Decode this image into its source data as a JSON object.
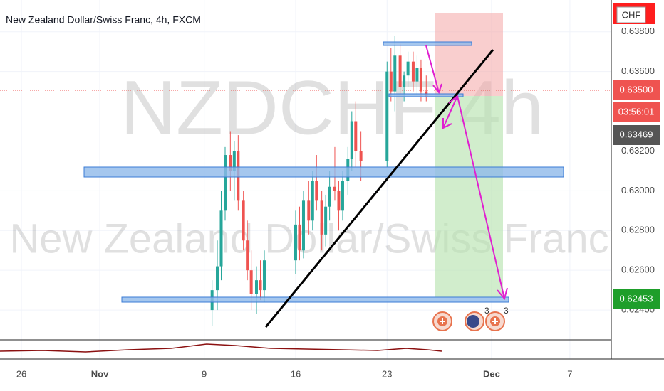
{
  "chart_data": {
    "type": "candlestick",
    "title": "New Zealand Dollar/Swiss Franc, 4h, FXCM",
    "watermark_symbol": "NZDCHF 4h",
    "watermark_name": "New Zealand Dollar/Swiss Franc",
    "currency": "CHF",
    "xlim": [
      -1.64,
      45.17
    ],
    "xticks": [
      {
        "value": 0,
        "label": "26"
      },
      {
        "value": 6,
        "label": "Nov"
      },
      {
        "value": 14,
        "label": "9"
      },
      {
        "value": 21,
        "label": "16"
      },
      {
        "value": 28,
        "label": "23"
      },
      {
        "value": 36,
        "label": "Dec"
      },
      {
        "value": 42,
        "label": "7"
      }
    ],
    "ylim": [
      0.6225,
      0.6396
    ],
    "yticks": [
      {
        "value": 0.638,
        "label": "0.63800"
      },
      {
        "value": 0.636,
        "label": "0.63600"
      },
      {
        "value": 0.632,
        "label": "0.63200"
      },
      {
        "value": 0.63,
        "label": "0.63000"
      },
      {
        "value": 0.628,
        "label": "0.62800"
      },
      {
        "value": 0.626,
        "label": "0.62600"
      },
      {
        "value": 0.624,
        "label": "0.62400"
      }
    ],
    "up_color": "#26a69a",
    "down_color": "#ef5350",
    "x": [
      14.6,
      15.0,
      15.3,
      15.6,
      16.0,
      16.3,
      16.6,
      17.0,
      17.3,
      17.6,
      18.0,
      18.3,
      18.6,
      21.0,
      21.3,
      21.6,
      22.0,
      22.3,
      22.6,
      23.0,
      23.3,
      23.6,
      24.0,
      24.3,
      24.6,
      25.0,
      25.3,
      25.6,
      26.0,
      28.0,
      28.3,
      28.6,
      29.0,
      29.3,
      29.6,
      30.0,
      30.3,
      30.6,
      31.0
    ],
    "open": [
      0.624,
      0.625,
      0.6262,
      0.629,
      0.6318,
      0.631,
      0.632,
      0.6295,
      0.6275,
      0.626,
      0.6248,
      0.6255,
      0.625,
      0.6265,
      0.6283,
      0.627,
      0.6295,
      0.6285,
      0.6305,
      0.6295,
      0.6278,
      0.6292,
      0.6302,
      0.63,
      0.629,
      0.6305,
      0.6316,
      0.6335,
      0.632,
      0.6315,
      0.636,
      0.635,
      0.6368,
      0.6352,
      0.6358,
      0.6365,
      0.6355,
      0.6362,
      0.635
    ],
    "high": [
      0.6255,
      0.6275,
      0.63,
      0.6322,
      0.633,
      0.6325,
      0.6328,
      0.63,
      0.6285,
      0.627,
      0.6262,
      0.6265,
      0.627,
      0.629,
      0.6292,
      0.63,
      0.6305,
      0.631,
      0.6318,
      0.63,
      0.6298,
      0.631,
      0.6322,
      0.6305,
      0.631,
      0.6322,
      0.634,
      0.6345,
      0.633,
      0.6365,
      0.6372,
      0.6378,
      0.6374,
      0.636,
      0.637,
      0.637,
      0.6368,
      0.6366,
      0.6358
    ],
    "low": [
      0.6232,
      0.624,
      0.6255,
      0.6285,
      0.63,
      0.6295,
      0.629,
      0.627,
      0.6255,
      0.624,
      0.6238,
      0.6245,
      0.6244,
      0.6258,
      0.6265,
      0.6266,
      0.6278,
      0.628,
      0.629,
      0.627,
      0.6272,
      0.6285,
      0.6295,
      0.628,
      0.6285,
      0.6298,
      0.631,
      0.6312,
      0.6305,
      0.6312,
      0.6345,
      0.634,
      0.6348,
      0.6345,
      0.6352,
      0.635,
      0.6348,
      0.6345,
      0.6345
    ],
    "close": [
      0.625,
      0.6262,
      0.629,
      0.6318,
      0.631,
      0.632,
      0.6295,
      0.6275,
      0.626,
      0.6248,
      0.6255,
      0.625,
      0.6265,
      0.6283,
      0.627,
      0.6295,
      0.6285,
      0.6305,
      0.6295,
      0.6278,
      0.6292,
      0.6302,
      0.63,
      0.629,
      0.6305,
      0.6316,
      0.6335,
      0.632,
      0.6315,
      0.636,
      0.635,
      0.6368,
      0.6352,
      0.6358,
      0.6365,
      0.6355,
      0.6362,
      0.635,
      0.6347
    ],
    "price_labels": [
      {
        "value": 0.635,
        "label": "0.63500",
        "color": "#ef5350"
      },
      {
        "value": 0.63469,
        "label": "0.63469",
        "color": "#555555"
      },
      {
        "value": 0.62453,
        "label": "0.62453",
        "color": "#1e9e2a"
      }
    ],
    "countdown": "03:56:01",
    "badges": [
      "3",
      "3"
    ]
  }
}
